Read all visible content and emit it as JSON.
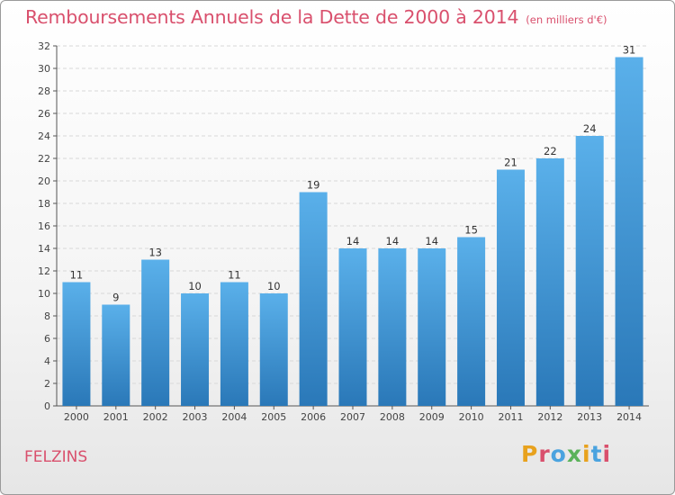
{
  "header": {
    "title": "Remboursements Annuels de la Dette de 2000 à 2014",
    "subtitle": "(en milliers d'€)"
  },
  "footer": {
    "place": "FELZINS",
    "logo_text": "Proxiti",
    "logo_colors": [
      "#e8a21e",
      "#d9506d",
      "#4aa3df",
      "#5bb25a",
      "#e8a21e",
      "#4aa3df",
      "#d9506d"
    ]
  },
  "colors": {
    "bar_light": "#5ab0ea",
    "bar_dark": "#2a78b8",
    "grid": "#d8d8d8",
    "axis": "#555555"
  },
  "chart_data": {
    "type": "bar",
    "title": "Remboursements Annuels de la Dette de 2000 à 2014",
    "subtitle": "(en milliers d'€)",
    "xlabel": "",
    "ylabel": "",
    "categories": [
      "2000",
      "2001",
      "2002",
      "2003",
      "2004",
      "2005",
      "2006",
      "2007",
      "2008",
      "2009",
      "2010",
      "2011",
      "2012",
      "2013",
      "2014"
    ],
    "values": [
      11,
      9,
      13,
      10,
      11,
      10,
      19,
      14,
      14,
      14,
      15,
      21,
      22,
      24,
      31
    ],
    "ylim": [
      0,
      32
    ],
    "yticks": [
      0,
      2,
      4,
      6,
      8,
      10,
      12,
      14,
      16,
      18,
      20,
      22,
      24,
      26,
      28,
      30,
      32
    ],
    "grid": true,
    "legend": "none"
  }
}
